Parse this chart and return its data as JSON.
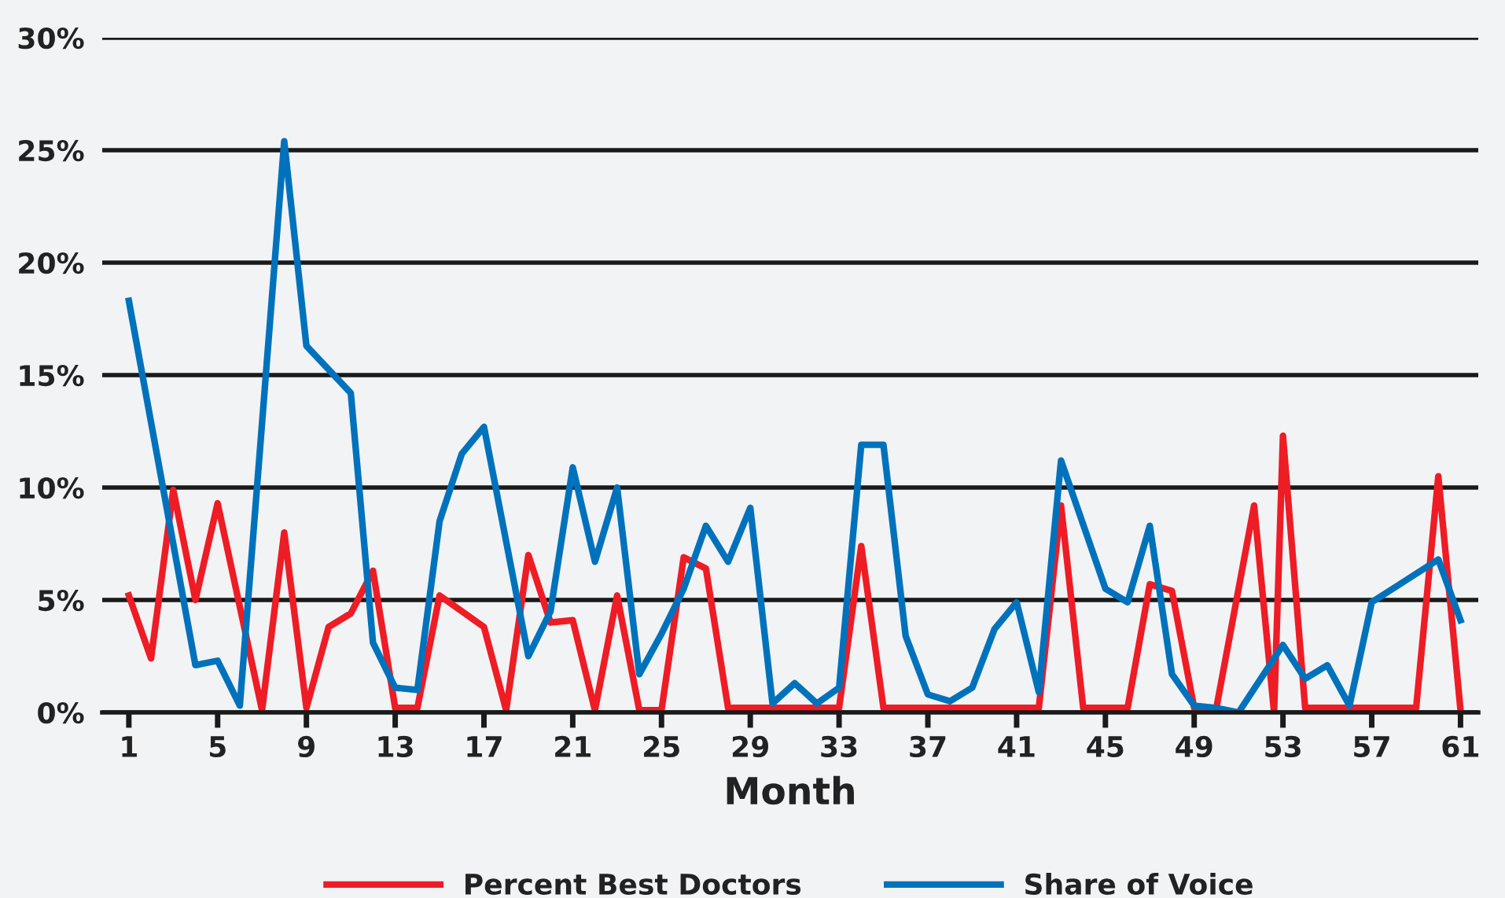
{
  "chart_data": {
    "type": "line",
    "xlabel": "Month",
    "xlim": [
      -0.2,
      61.8
    ],
    "xticks": [
      1,
      5,
      9,
      13,
      17,
      21,
      25,
      29,
      33,
      37,
      41,
      45,
      49,
      53,
      57,
      61
    ],
    "ylim": [
      0,
      30
    ],
    "yticks": [
      {
        "value": 0,
        "label": "0%"
      },
      {
        "value": 5,
        "label": "5%"
      },
      {
        "value": 10,
        "label": "10%"
      },
      {
        "value": 15,
        "label": "15%"
      },
      {
        "value": 20,
        "label": "20%"
      },
      {
        "value": 25,
        "label": "25%"
      },
      {
        "value": 30,
        "label": "30%"
      }
    ],
    "grid": "y",
    "legend": "bottom",
    "marker": "none",
    "line_style": "solid",
    "series": [
      {
        "name": "Percent Best Doctors",
        "color": "#ee1c25",
        "x": [
          1,
          2,
          3,
          4,
          5,
          7,
          8,
          9,
          10,
          11,
          12,
          13,
          14,
          15,
          17,
          18,
          19,
          20,
          21,
          22,
          23,
          24,
          25,
          26,
          27,
          28,
          33,
          34,
          35,
          42,
          43,
          44,
          46,
          47,
          48,
          49,
          50,
          51.7,
          52.6,
          53,
          54,
          59,
          60,
          61
        ],
        "values": [
          5.2,
          2.4,
          9.9,
          5.0,
          9.3,
          0.1,
          8.0,
          0.2,
          3.8,
          4.4,
          6.3,
          0.2,
          0.2,
          5.2,
          3.8,
          0.1,
          7.0,
          4.0,
          4.1,
          0.1,
          5.2,
          0.1,
          0.1,
          6.9,
          6.4,
          0.2,
          0.2,
          7.4,
          0.2,
          0.2,
          9.2,
          0.2,
          0.2,
          5.7,
          5.4,
          0.2,
          0.2,
          9.2,
          0.0,
          12.3,
          0.2,
          0.2,
          10.5,
          0.1
        ]
      },
      {
        "name": "Share of Voice",
        "color": "#0072bc",
        "x": [
          1,
          4,
          5,
          6,
          8,
          9,
          11,
          12,
          13,
          14,
          15,
          16,
          17,
          19,
          20,
          21,
          22,
          23,
          24,
          25,
          26,
          27,
          28,
          29,
          30,
          31,
          32,
          33,
          34,
          35,
          36,
          37,
          38,
          39,
          40,
          41,
          42,
          43,
          45,
          46,
          47,
          48,
          49,
          50,
          51,
          53,
          54,
          55,
          56,
          57,
          60,
          61
        ],
        "values": [
          18.3,
          2.1,
          2.3,
          0.3,
          25.4,
          16.3,
          14.2,
          3.1,
          1.1,
          1.0,
          8.5,
          11.5,
          12.7,
          2.5,
          4.5,
          10.9,
          6.7,
          10.0,
          1.7,
          3.5,
          5.5,
          8.3,
          6.7,
          9.1,
          0.4,
          1.3,
          0.4,
          1.1,
          11.9,
          11.9,
          3.4,
          0.8,
          0.5,
          1.1,
          3.7,
          4.9,
          0.9,
          11.2,
          5.5,
          4.9,
          8.3,
          1.7,
          0.3,
          0.2,
          0.0,
          3.0,
          1.5,
          2.1,
          0.3,
          4.9,
          6.8,
          4.1
        ]
      }
    ]
  }
}
